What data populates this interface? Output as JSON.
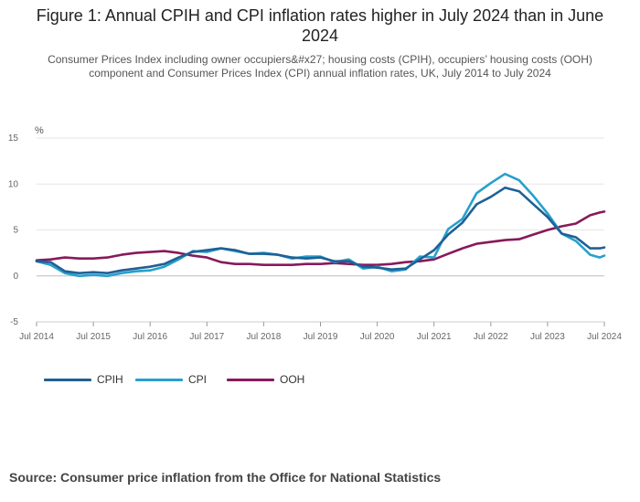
{
  "title": "Figure 1: Annual CPIH and CPI inflation rates higher in July 2024 than in June 2024",
  "subtitle": "Consumer Prices Index including owner occupiers&#x27; housing costs (CPIH), occupiers’ housing costs (OOH) component and Consumer Prices Index (CPI) annual inflation rates, UK, July 2014 to July 2024",
  "source": "Source: Consumer price inflation from the Office for National Statistics",
  "colors": {
    "CPIH": "#206095",
    "CPI": "#27a0cc",
    "OOH": "#871a5b",
    "grid": "#e6e6e6",
    "zero": "#bbbbbb"
  },
  "chart_data": {
    "type": "line",
    "ylabel": "%",
    "ylim": [
      -5,
      15
    ],
    "yticks": [
      -5,
      0,
      5,
      10,
      15
    ],
    "xlim": [
      2014.5,
      2024.5
    ],
    "xticks": [
      {
        "x": 2014.5,
        "label": "Jul 2014"
      },
      {
        "x": 2015.5,
        "label": "Jul 2015"
      },
      {
        "x": 2016.5,
        "label": "Jul 2016"
      },
      {
        "x": 2017.5,
        "label": "Jul 2017"
      },
      {
        "x": 2018.5,
        "label": "Jul 2018"
      },
      {
        "x": 2019.5,
        "label": "Jul 2019"
      },
      {
        "x": 2020.5,
        "label": "Jul 2020"
      },
      {
        "x": 2021.5,
        "label": "Jul 2021"
      },
      {
        "x": 2022.5,
        "label": "Jul 2022"
      },
      {
        "x": 2023.5,
        "label": "Jul 2023"
      },
      {
        "x": 2024.5,
        "label": "Jul 2024"
      }
    ],
    "legend_position": "bottom-left",
    "series": [
      {
        "name": "CPIH",
        "points": [
          [
            2014.5,
            1.6
          ],
          [
            2014.75,
            1.5
          ],
          [
            2015.0,
            0.5
          ],
          [
            2015.25,
            0.3
          ],
          [
            2015.5,
            0.4
          ],
          [
            2015.75,
            0.3
          ],
          [
            2016.0,
            0.6
          ],
          [
            2016.25,
            0.8
          ],
          [
            2016.5,
            1.0
          ],
          [
            2016.75,
            1.3
          ],
          [
            2017.0,
            2.0
          ],
          [
            2017.25,
            2.6
          ],
          [
            2017.5,
            2.8
          ],
          [
            2017.75,
            3.0
          ],
          [
            2018.0,
            2.8
          ],
          [
            2018.25,
            2.4
          ],
          [
            2018.5,
            2.4
          ],
          [
            2018.75,
            2.3
          ],
          [
            2019.0,
            2.0
          ],
          [
            2019.25,
            1.9
          ],
          [
            2019.5,
            2.0
          ],
          [
            2019.75,
            1.6
          ],
          [
            2020.0,
            1.6
          ],
          [
            2020.25,
            1.0
          ],
          [
            2020.5,
            0.9
          ],
          [
            2020.75,
            0.7
          ],
          [
            2021.0,
            0.8
          ],
          [
            2021.25,
            1.8
          ],
          [
            2021.5,
            2.8
          ],
          [
            2021.75,
            4.5
          ],
          [
            2022.0,
            5.8
          ],
          [
            2022.25,
            7.8
          ],
          [
            2022.5,
            8.6
          ],
          [
            2022.75,
            9.6
          ],
          [
            2023.0,
            9.2
          ],
          [
            2023.25,
            7.8
          ],
          [
            2023.5,
            6.4
          ],
          [
            2023.75,
            4.6
          ],
          [
            2024.0,
            4.2
          ],
          [
            2024.25,
            3.0
          ],
          [
            2024.42,
            3.0
          ],
          [
            2024.5,
            3.1
          ]
        ]
      },
      {
        "name": "CPI",
        "points": [
          [
            2014.5,
            1.6
          ],
          [
            2014.75,
            1.2
          ],
          [
            2015.0,
            0.3
          ],
          [
            2015.25,
            0.0
          ],
          [
            2015.5,
            0.1
          ],
          [
            2015.75,
            0.0
          ],
          [
            2016.0,
            0.3
          ],
          [
            2016.25,
            0.5
          ],
          [
            2016.5,
            0.6
          ],
          [
            2016.75,
            1.0
          ],
          [
            2017.0,
            1.8
          ],
          [
            2017.25,
            2.7
          ],
          [
            2017.5,
            2.6
          ],
          [
            2017.75,
            3.0
          ],
          [
            2018.0,
            2.7
          ],
          [
            2018.25,
            2.4
          ],
          [
            2018.5,
            2.5
          ],
          [
            2018.75,
            2.3
          ],
          [
            2019.0,
            1.9
          ],
          [
            2019.25,
            2.1
          ],
          [
            2019.5,
            2.1
          ],
          [
            2019.75,
            1.5
          ],
          [
            2020.0,
            1.8
          ],
          [
            2020.25,
            0.8
          ],
          [
            2020.5,
            1.0
          ],
          [
            2020.75,
            0.5
          ],
          [
            2021.0,
            0.7
          ],
          [
            2021.25,
            2.1
          ],
          [
            2021.5,
            2.0
          ],
          [
            2021.75,
            5.1
          ],
          [
            2022.0,
            6.2
          ],
          [
            2022.25,
            9.0
          ],
          [
            2022.5,
            10.1
          ],
          [
            2022.75,
            11.1
          ],
          [
            2023.0,
            10.4
          ],
          [
            2023.25,
            8.7
          ],
          [
            2023.5,
            6.8
          ],
          [
            2023.75,
            4.6
          ],
          [
            2024.0,
            3.8
          ],
          [
            2024.25,
            2.3
          ],
          [
            2024.42,
            2.0
          ],
          [
            2024.5,
            2.2
          ]
        ]
      },
      {
        "name": "OOH",
        "points": [
          [
            2014.5,
            1.7
          ],
          [
            2014.75,
            1.8
          ],
          [
            2015.0,
            2.0
          ],
          [
            2015.25,
            1.9
          ],
          [
            2015.5,
            1.9
          ],
          [
            2015.75,
            2.0
          ],
          [
            2016.0,
            2.3
          ],
          [
            2016.25,
            2.5
          ],
          [
            2016.5,
            2.6
          ],
          [
            2016.75,
            2.7
          ],
          [
            2017.0,
            2.5
          ],
          [
            2017.25,
            2.2
          ],
          [
            2017.5,
            2.0
          ],
          [
            2017.75,
            1.5
          ],
          [
            2018.0,
            1.3
          ],
          [
            2018.25,
            1.3
          ],
          [
            2018.5,
            1.2
          ],
          [
            2018.75,
            1.2
          ],
          [
            2019.0,
            1.2
          ],
          [
            2019.25,
            1.3
          ],
          [
            2019.5,
            1.3
          ],
          [
            2019.75,
            1.4
          ],
          [
            2020.0,
            1.3
          ],
          [
            2020.25,
            1.2
          ],
          [
            2020.5,
            1.2
          ],
          [
            2020.75,
            1.3
          ],
          [
            2021.0,
            1.5
          ],
          [
            2021.25,
            1.6
          ],
          [
            2021.5,
            1.8
          ],
          [
            2021.75,
            2.4
          ],
          [
            2022.0,
            3.0
          ],
          [
            2022.25,
            3.5
          ],
          [
            2022.5,
            3.7
          ],
          [
            2022.75,
            3.9
          ],
          [
            2023.0,
            4.0
          ],
          [
            2023.25,
            4.5
          ],
          [
            2023.5,
            5.0
          ],
          [
            2023.75,
            5.4
          ],
          [
            2024.0,
            5.7
          ],
          [
            2024.25,
            6.6
          ],
          [
            2024.42,
            6.9
          ],
          [
            2024.5,
            7.0
          ]
        ]
      }
    ]
  }
}
